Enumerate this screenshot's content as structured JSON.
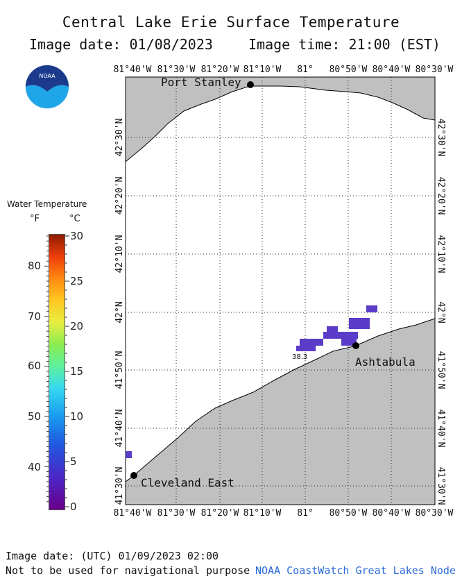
{
  "header": {
    "title": "Central Lake Erie Surface Temperature",
    "image_date": "Image date: 01/08/2023",
    "image_time": "Image time: 21:00 (EST)"
  },
  "logo": {
    "text": "NOAA",
    "icon": "noaa-logo-icon"
  },
  "legend": {
    "title": "Water Temperature",
    "unit_f": "°F",
    "unit_c": "°C",
    "f_ticks": [
      {
        "label": "80",
        "c": 26.7
      },
      {
        "label": "70",
        "c": 21.1
      },
      {
        "label": "60",
        "c": 15.6
      },
      {
        "label": "50",
        "c": 10.0
      },
      {
        "label": "40",
        "c": 4.4
      }
    ],
    "c_ticks": [
      {
        "label": "30",
        "c": 30
      },
      {
        "label": "25",
        "c": 25
      },
      {
        "label": "20",
        "c": 20
      },
      {
        "label": "15",
        "c": 15
      },
      {
        "label": "10",
        "c": 10
      },
      {
        "label": "5",
        "c": 5
      },
      {
        "label": "0",
        "c": 0
      }
    ]
  },
  "map": {
    "lon_labels": [
      "81°40'W",
      "81°30'W",
      "81°20'W",
      "81°10'W",
      "81°",
      "80°50'W",
      "80°40'W",
      "80°30'W"
    ],
    "lat_labels": [
      "42°30'N",
      "42°20'N",
      "42°10'N",
      "42°N",
      "41°50'N",
      "41°40'N",
      "41°30'N"
    ],
    "land_color": "#c0c0c0",
    "water_color": "#ffffff",
    "ice_cell_color": "#5a3cc8",
    "places": [
      {
        "name": "Port Stanley",
        "lon": -81.21,
        "lat": 42.66
      },
      {
        "name": "Ashtabula",
        "lon": -80.79,
        "lat": 41.89
      },
      {
        "name": "Cleveland East",
        "lon": -81.64,
        "lat": 41.55
      }
    ],
    "annotation": "38.3"
  },
  "footer": {
    "utc_date": "Image date: (UTC) 01/09/2023  02:00",
    "disclaimer": "Not to be used for navigational purpose",
    "credit": "NOAA CoastWatch Great Lakes Node"
  }
}
